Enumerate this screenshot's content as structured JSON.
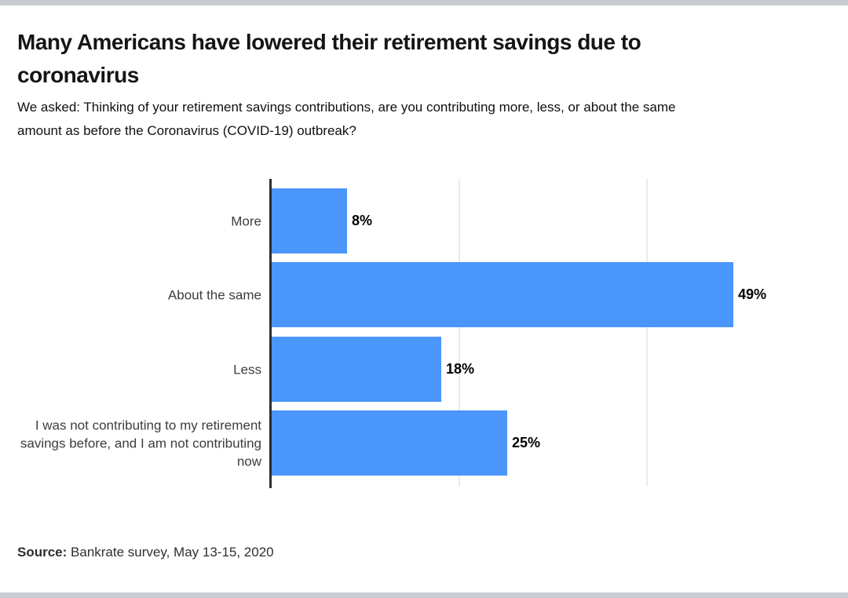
{
  "header": {
    "title": "Many Americans have lowered their retirement savings due to coronavirus",
    "subtitle": "We asked: Thinking of your retirement savings contributions, are you contributing more, less, or about the same amount as before the Coronavirus (COVID-19) outbreak?"
  },
  "chart_data": {
    "type": "bar",
    "orientation": "horizontal",
    "title": "Many Americans have lowered their retirement savings due to coronavirus",
    "categories": [
      "More",
      "About the same",
      "Less",
      "I was not contributing to my retirement savings before, and I am not contributing now"
    ],
    "values": [
      8,
      49,
      18,
      25
    ],
    "value_labels": [
      "8%",
      "49%",
      "18%",
      "25%"
    ],
    "xlabel": "",
    "ylabel": "",
    "xlim": [
      0,
      61
    ],
    "gridlines_at_percent": [
      20,
      40
    ],
    "grid": "vertical-only",
    "legend_position": "none",
    "bar_color": "#4B96FA",
    "axis_color": "#2d2d2d",
    "gridline_color": "#ebebeb"
  },
  "footer": {
    "source_label": "Source:",
    "source_text": " Bankrate survey, May 13-15, 2020"
  },
  "colors": {
    "page_border": "#c9ccd3",
    "background": "#ffffff",
    "value_label": "#000000",
    "category_label": "#3d3d3d"
  }
}
